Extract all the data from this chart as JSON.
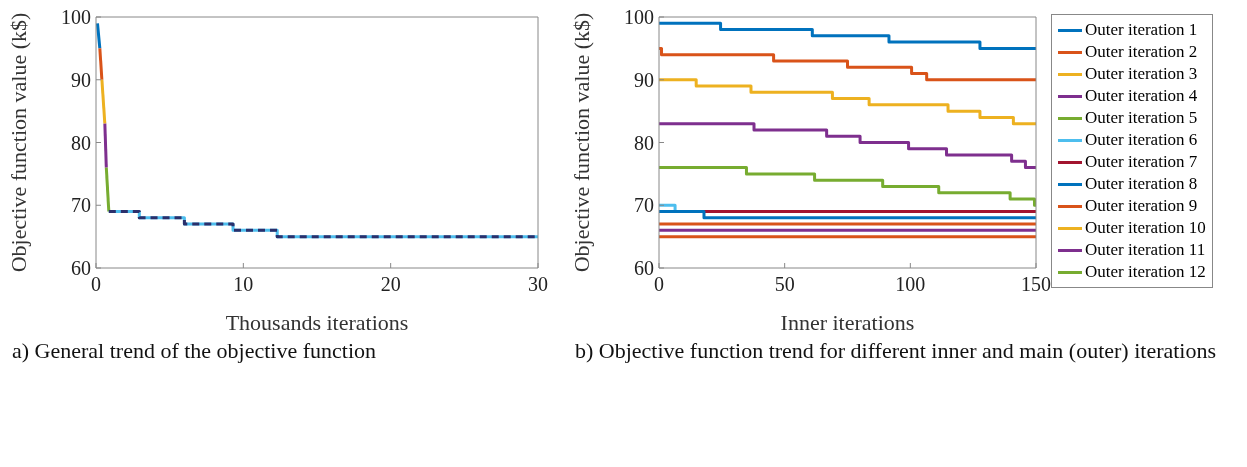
{
  "chart_data": [
    {
      "type": "line",
      "xlabel": "Thousands iterations",
      "ylabel": "Objective function value (k$)",
      "xlim": [
        0,
        30
      ],
      "xticks": [
        0,
        10,
        20,
        30
      ],
      "ylim": [
        60,
        100
      ],
      "yticks": [
        60,
        70,
        80,
        90,
        100
      ],
      "grid": false,
      "legend": false,
      "annotations": [
        "a) General trend of the objective function"
      ],
      "series": [
        {
          "color": "#0072bd",
          "x": [
            0.1,
            0.26
          ],
          "values": [
            99,
            95
          ]
        },
        {
          "color": "#d95319",
          "x": [
            0.26,
            0.4
          ],
          "values": [
            95,
            90
          ]
        },
        {
          "color": "#edb120",
          "x": [
            0.4,
            0.6
          ],
          "values": [
            90,
            83
          ]
        },
        {
          "color": "#7e2f8e",
          "x": [
            0.6,
            0.7
          ],
          "values": [
            83,
            76
          ]
        },
        {
          "color": "#77ac30",
          "x": [
            0.7,
            0.87
          ],
          "values": [
            76,
            69
          ]
        },
        {
          "type": "step",
          "color": "#4dbeee",
          "x": [
            0.87,
            2.94,
            6,
            9.3,
            12.3,
            30
          ],
          "values": [
            69,
            68,
            67,
            66,
            65,
            65
          ]
        },
        {
          "type": "step",
          "color": "#2b2f6b",
          "line_style": "dashed",
          "x": [
            0.87,
            2.94,
            6,
            9.3,
            12.3,
            30
          ],
          "values": [
            69,
            68,
            67,
            66,
            65,
            65
          ]
        }
      ]
    },
    {
      "type": "step",
      "xlabel": "Inner iterations",
      "ylabel": "Objective function value (k$)",
      "xlim": [
        0,
        150
      ],
      "xticks": [
        0,
        50,
        100,
        150
      ],
      "ylim": [
        60,
        100
      ],
      "yticks": [
        60,
        70,
        80,
        90,
        100
      ],
      "grid": false,
      "legend": "right",
      "annotations": [
        "b) Objective function trend for different inner and main (outer) iterations"
      ],
      "series": [
        {
          "name": "Outer iteration 1",
          "color": "#0072bd",
          "x": [
            0,
            24.5,
            61,
            91.5,
            127.7,
            150
          ],
          "values": [
            99,
            98,
            97,
            96,
            95,
            95
          ]
        },
        {
          "name": "Outer iteration 2",
          "color": "#d95319",
          "x": [
            0,
            1,
            45.6,
            75,
            100.5,
            106.5,
            150
          ],
          "values": [
            95,
            94,
            93,
            92,
            91,
            90,
            90
          ]
        },
        {
          "name": "Outer iteration 3",
          "color": "#edb120",
          "x": [
            0,
            14.8,
            36.6,
            69,
            83.6,
            115,
            127.7,
            141,
            150
          ],
          "values": [
            90,
            89,
            88,
            87,
            86,
            85,
            84,
            83,
            83
          ]
        },
        {
          "name": "Outer iteration 4",
          "color": "#7e2f8e",
          "x": [
            0,
            37.8,
            66.7,
            80,
            99.3,
            114.4,
            140.3,
            145.8,
            150
          ],
          "values": [
            83,
            82,
            81,
            80,
            79,
            78,
            77,
            76,
            76
          ]
        },
        {
          "name": "Outer iteration 5",
          "color": "#77ac30",
          "x": [
            0,
            34.8,
            61.9,
            89,
            111.3,
            139.7,
            149.4,
            150
          ],
          "values": [
            76,
            75,
            74,
            73,
            72,
            71,
            70,
            70
          ]
        },
        {
          "name": "Outer iteration 6",
          "color": "#4dbeee",
          "x": [
            0,
            6.4
          ],
          "values": [
            70,
            69
          ]
        },
        {
          "name": "Outer iteration 7",
          "color": "#a2142f",
          "x": [
            0,
            150
          ],
          "values": [
            69,
            69
          ]
        },
        {
          "name": "Outer iteration 8",
          "color": "#0072bd",
          "x": [
            0,
            17.9,
            150
          ],
          "values": [
            69,
            68,
            68
          ]
        },
        {
          "name": "Outer iteration 9",
          "color": "#d95319",
          "x": [
            0,
            150
          ],
          "values": [
            67,
            67
          ]
        },
        {
          "name": "Outer iteration 10",
          "color": "#edb120"
        },
        {
          "name": "Outer iteration 11",
          "color": "#7e2f8e",
          "x": [
            0,
            150
          ],
          "values": [
            66,
            66
          ]
        },
        {
          "name": "Outer iteration 12",
          "color": "#77ac30"
        },
        {
          "color": "#d95319",
          "x": [
            0,
            150
          ],
          "values": [
            65,
            65
          ]
        }
      ]
    }
  ]
}
